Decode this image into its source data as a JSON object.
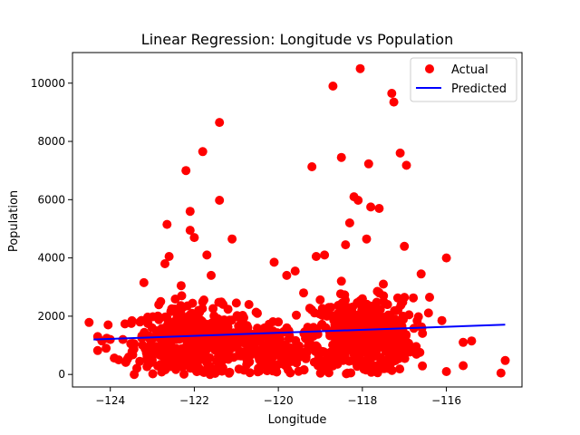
{
  "chart_data": {
    "type": "scatter",
    "title": "Linear Regression: Longitude vs Population",
    "xlabel": "Longitude",
    "ylabel": "Population",
    "xlim": [
      -124.9,
      -114.2
    ],
    "ylim": [
      -430,
      11050
    ],
    "xticks": [
      -124,
      -122,
      -120,
      -118,
      -116
    ],
    "xtick_labels": [
      "−124",
      "−122",
      "−120",
      "−118",
      "−116"
    ],
    "yticks": [
      0,
      2000,
      4000,
      6000,
      8000,
      10000
    ],
    "ytick_labels": [
      "0",
      "2000",
      "4000",
      "6000",
      "8000",
      "10000"
    ],
    "grid": false,
    "legend_position": "top-right",
    "series": [
      {
        "name": "Actual",
        "kind": "scatter",
        "color": "#ff0000",
        "points": [
          [
            -124.3,
            1300
          ],
          [
            -124.2,
            1150
          ],
          [
            -124.1,
            900
          ],
          [
            -124.0,
            1200
          ],
          [
            -124.3,
            820
          ],
          [
            -123.8,
            500
          ],
          [
            -123.7,
            1200
          ],
          [
            -123.5,
            1750
          ],
          [
            -123.3,
            450
          ],
          [
            -123.2,
            3150
          ],
          [
            -123.1,
            900
          ],
          [
            -122.9,
            1500
          ],
          [
            -122.8,
            2500
          ],
          [
            -122.7,
            3800
          ],
          [
            -122.6,
            4050
          ],
          [
            -122.65,
            5150
          ],
          [
            -122.2,
            7000
          ],
          [
            -122.1,
            5600
          ],
          [
            -122.1,
            4950
          ],
          [
            -122.0,
            4700
          ],
          [
            -121.8,
            7650
          ],
          [
            -121.7,
            4100
          ],
          [
            -121.6,
            3400
          ],
          [
            -121.4,
            8650
          ],
          [
            -121.4,
            5980
          ],
          [
            -121.1,
            4650
          ],
          [
            -121.0,
            2450
          ],
          [
            -120.7,
            2400
          ],
          [
            -120.5,
            2100
          ],
          [
            -120.1,
            3850
          ],
          [
            -120.0,
            1800
          ],
          [
            -119.8,
            3400
          ],
          [
            -119.6,
            3550
          ],
          [
            -119.4,
            2800
          ],
          [
            -119.2,
            7130
          ],
          [
            -119.1,
            4050
          ],
          [
            -118.9,
            4100
          ],
          [
            -118.7,
            9900
          ],
          [
            -118.5,
            7450
          ],
          [
            -118.4,
            4450
          ],
          [
            -118.3,
            5200
          ],
          [
            -118.2,
            6100
          ],
          [
            -118.1,
            5980
          ],
          [
            -118.05,
            10500
          ],
          [
            -117.9,
            4650
          ],
          [
            -117.85,
            7230
          ],
          [
            -117.8,
            5750
          ],
          [
            -117.6,
            5700
          ],
          [
            -117.3,
            9650
          ],
          [
            -117.25,
            9350
          ],
          [
            -117.1,
            7600
          ],
          [
            -116.95,
            7180
          ],
          [
            -117.0,
            4400
          ],
          [
            -116.6,
            3450
          ],
          [
            -116.0,
            4000
          ],
          [
            -116.4,
            2650
          ],
          [
            -115.6,
            1100
          ],
          [
            -115.4,
            1150
          ],
          [
            -115.6,
            300
          ],
          [
            -114.7,
            50
          ],
          [
            -114.6,
            480
          ],
          [
            -116.0,
            100
          ],
          [
            -118.0,
            2600
          ],
          [
            -117.6,
            2800
          ],
          [
            -118.5,
            3200
          ],
          [
            -122.3,
            2700
          ],
          [
            -121.9,
            2200
          ],
          [
            -122.4,
            1800
          ],
          [
            -117.5,
            3100
          ],
          [
            -118.8,
            2300
          ]
        ]
      },
      {
        "name": "Predicted",
        "kind": "line",
        "color": "#0000ff",
        "points": [
          [
            -124.4,
            1200
          ],
          [
            -114.6,
            1710
          ]
        ]
      }
    ],
    "clusters": [
      {
        "x_center": -122.0,
        "x_spread": 1.2,
        "y_center": 1100,
        "y_spread": 850,
        "count": 480
      },
      {
        "x_center": -118.0,
        "x_spread": 1.0,
        "y_center": 1350,
        "y_spread": 900,
        "count": 520
      },
      {
        "x_center": -120.0,
        "x_spread": 0.9,
        "y_center": 800,
        "y_spread": 600,
        "count": 140
      }
    ]
  }
}
